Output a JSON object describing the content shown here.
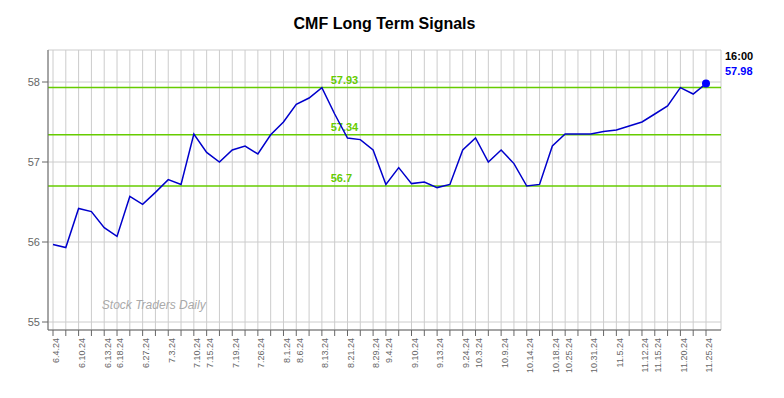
{
  "chart_data": {
    "type": "line",
    "title": "CMF Long Term Signals",
    "color": "#0000cc",
    "categories": [
      "6.4.24",
      null,
      "6.10.24",
      null,
      "6.13.24",
      "6.18.24",
      null,
      "6.27.24",
      null,
      "7.3.24",
      null,
      "7.10.24",
      "7.15.24",
      null,
      "7.19.24",
      null,
      "7.26.24",
      null,
      "8.1.24",
      "8.6.24",
      null,
      "8.13.24",
      null,
      "8.21.24",
      null,
      "8.29.24",
      "9.4.24",
      null,
      "9.10.24",
      null,
      "9.13.24",
      null,
      "9.24.24",
      "10.3.24",
      null,
      "10.9.24",
      null,
      "10.14.24",
      null,
      "10.18.24",
      "10.25.24",
      null,
      "10.31.24",
      null,
      "11.5.24",
      null,
      "11.12.24",
      "11.15.24",
      null,
      "11.20.24",
      null,
      "11.25.24"
    ],
    "values": [
      55.97,
      55.93,
      56.42,
      56.38,
      56.18,
      56.07,
      56.57,
      56.47,
      56.62,
      56.78,
      56.72,
      57.35,
      57.12,
      57.0,
      57.15,
      57.2,
      57.1,
      57.34,
      57.5,
      57.72,
      57.8,
      57.93,
      57.6,
      57.3,
      57.28,
      57.15,
      56.72,
      56.93,
      56.73,
      56.75,
      56.68,
      56.72,
      57.15,
      57.3,
      57.0,
      57.15,
      56.98,
      56.7,
      56.72,
      57.2,
      57.35,
      57.35,
      57.35,
      57.38,
      57.4,
      57.45,
      57.5,
      57.6,
      57.7,
      57.93,
      57.85,
      57.98
    ],
    "ylim": [
      54.9,
      58.4
    ],
    "yticks": [
      55,
      56,
      57,
      58
    ],
    "grid": true,
    "hlines": [
      {
        "value": 56.7,
        "label": "56.7",
        "color": "#66cc00"
      },
      {
        "value": 57.34,
        "label": "57.34",
        "color": "#66cc00"
      },
      {
        "value": 57.93,
        "label": "57.93",
        "color": "#66cc00"
      }
    ],
    "last_point": {
      "color": "#0000ff"
    },
    "annotations": [
      {
        "text": "16:00",
        "color": "#000000"
      },
      {
        "text": "57.98",
        "color": "#0000ff"
      }
    ],
    "watermark": {
      "text": "Stock Traders Daily",
      "color": "#aaaaaa"
    }
  }
}
